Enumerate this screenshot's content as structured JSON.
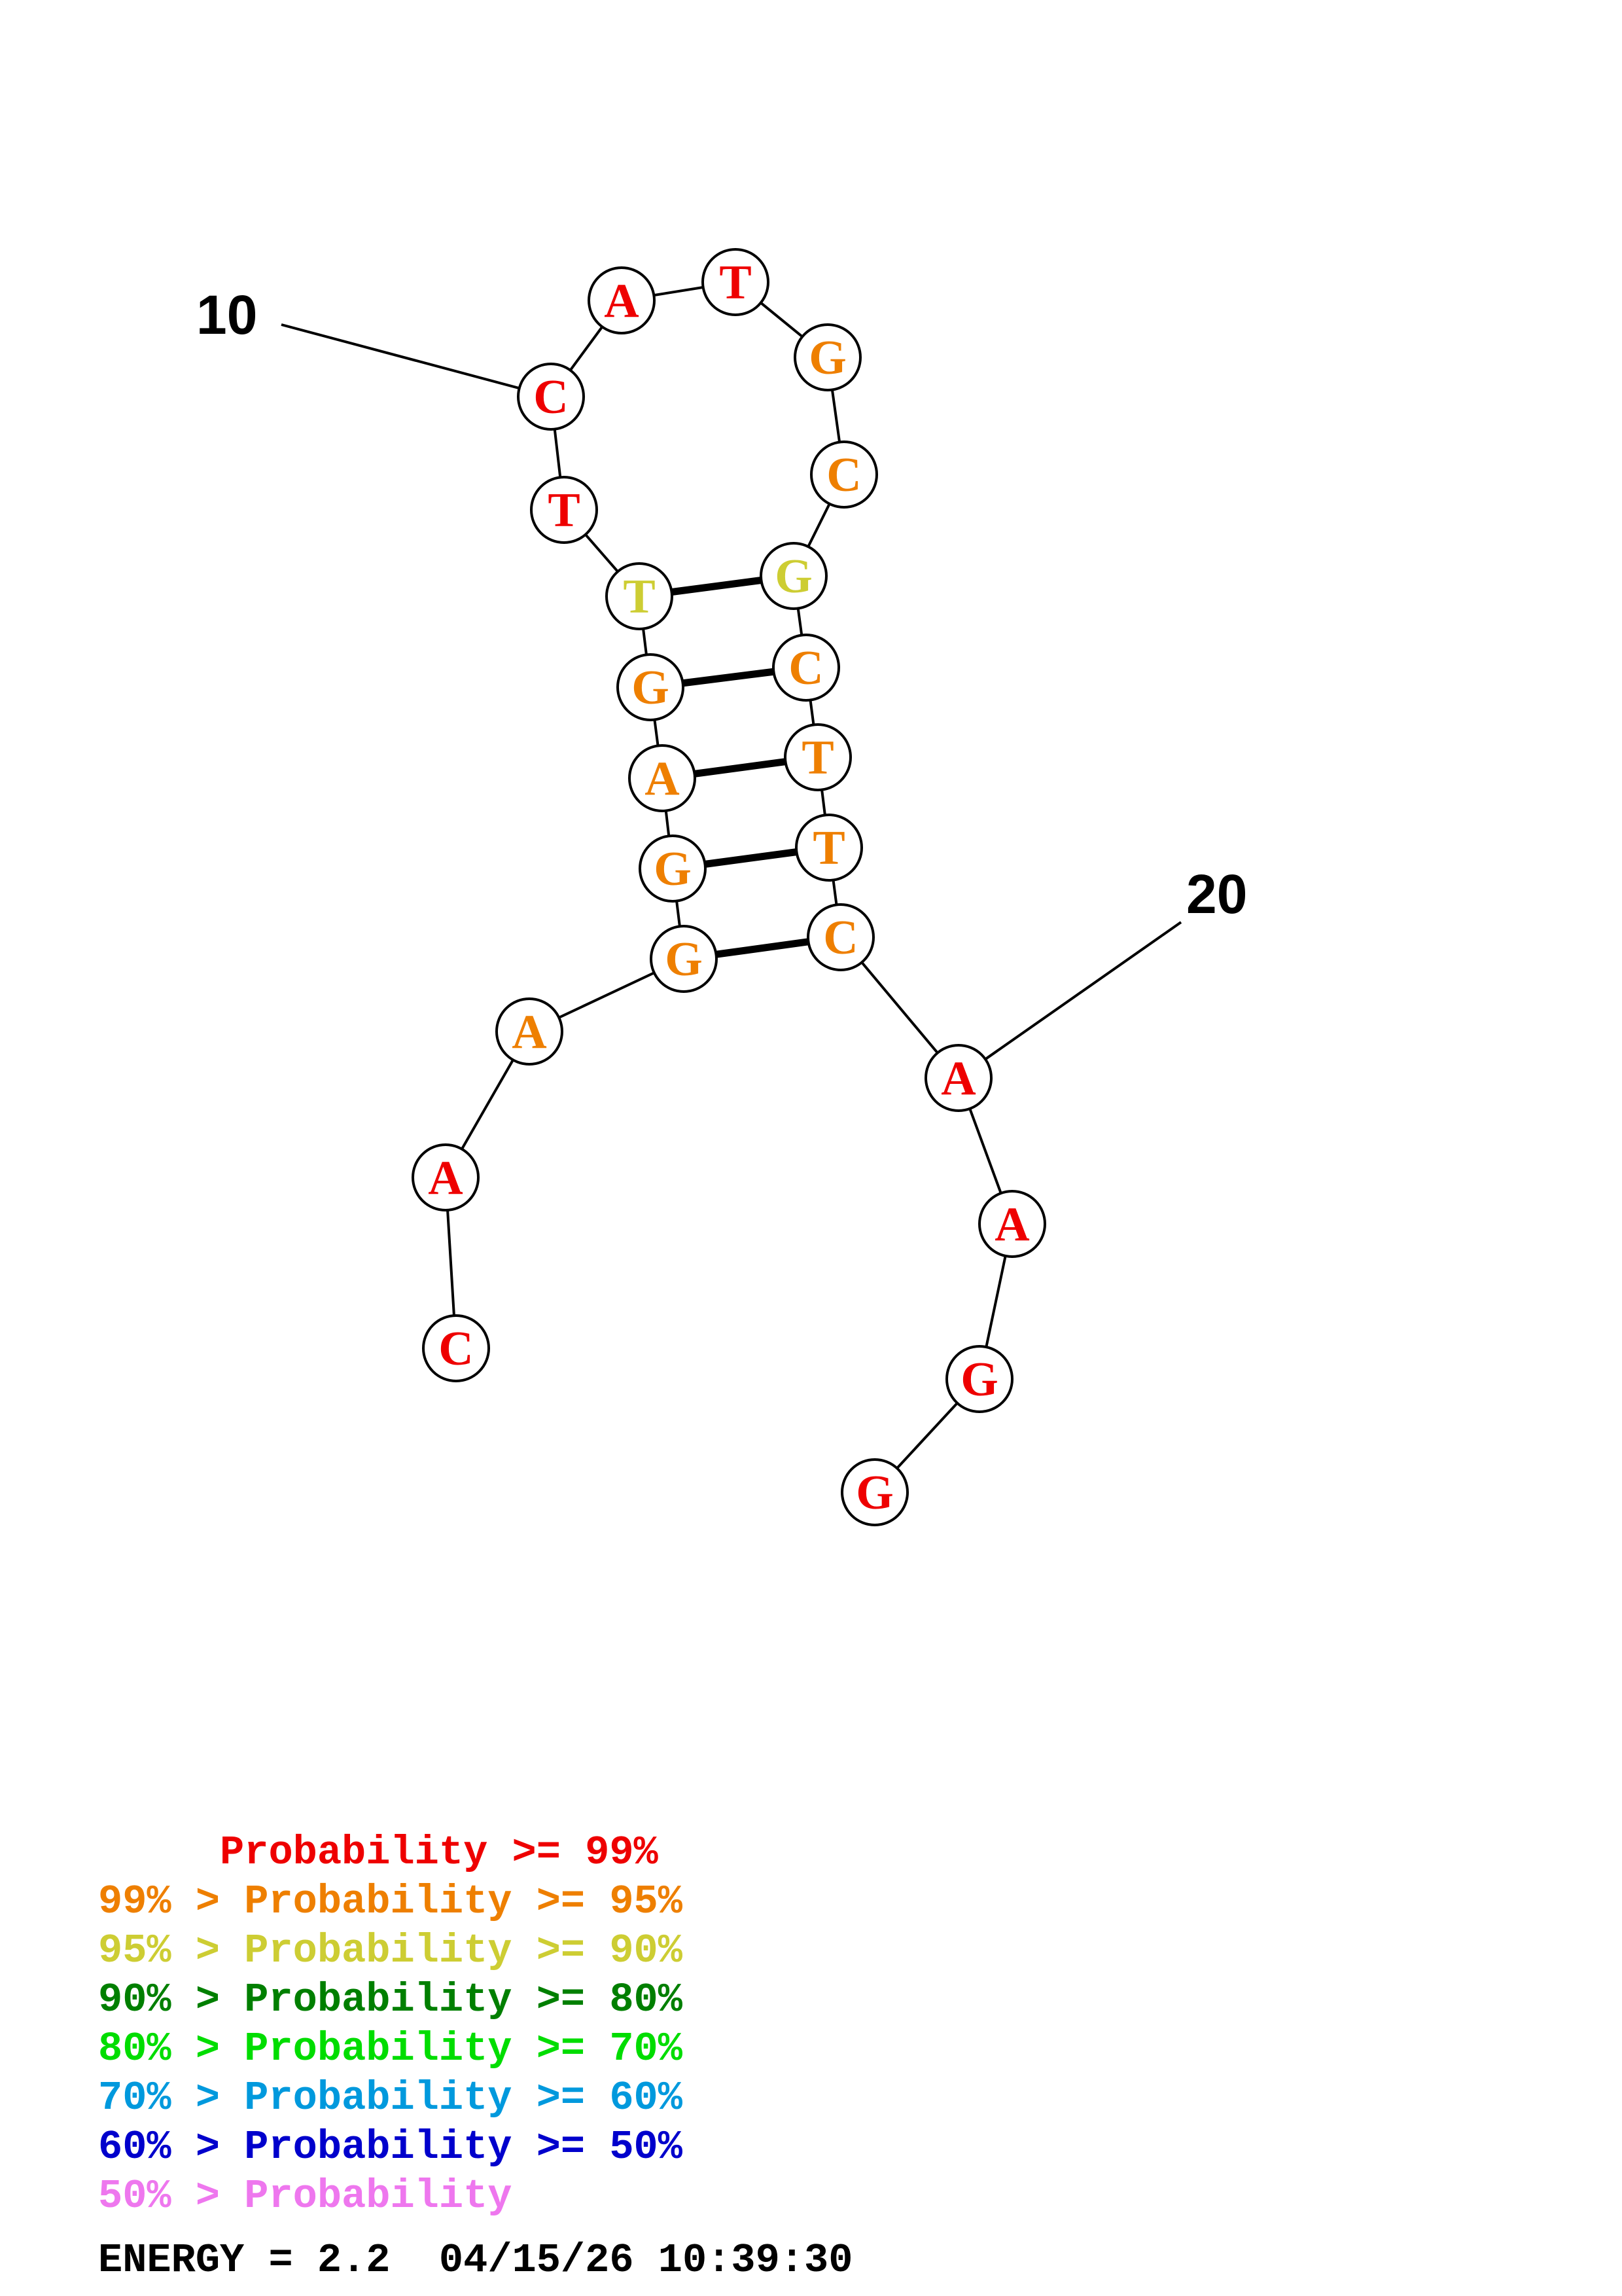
{
  "colors": {
    "p99": "#ee0000",
    "p95": "#ee7f00",
    "p90": "#cdcd33",
    "p80": "#007f00",
    "p70": "#00dd00",
    "p60": "#0099dd",
    "p50": "#0000cc",
    "plow": "#ee77ee"
  },
  "nucleotides": [
    {
      "index": 1,
      "base": "C",
      "prob": "p99"
    },
    {
      "index": 2,
      "base": "A",
      "prob": "p99"
    },
    {
      "index": 3,
      "base": "A",
      "prob": "p95"
    },
    {
      "index": 4,
      "base": "G",
      "prob": "p95"
    },
    {
      "index": 5,
      "base": "G",
      "prob": "p95"
    },
    {
      "index": 6,
      "base": "A",
      "prob": "p95"
    },
    {
      "index": 7,
      "base": "G",
      "prob": "p95"
    },
    {
      "index": 8,
      "base": "T",
      "prob": "p90"
    },
    {
      "index": 9,
      "base": "T",
      "prob": "p99"
    },
    {
      "index": 10,
      "base": "C",
      "prob": "p99"
    },
    {
      "index": 11,
      "base": "A",
      "prob": "p99"
    },
    {
      "index": 12,
      "base": "T",
      "prob": "p99"
    },
    {
      "index": 13,
      "base": "G",
      "prob": "p95"
    },
    {
      "index": 14,
      "base": "C",
      "prob": "p95"
    },
    {
      "index": 15,
      "base": "G",
      "prob": "p90"
    },
    {
      "index": 16,
      "base": "C",
      "prob": "p95"
    },
    {
      "index": 17,
      "base": "T",
      "prob": "p95"
    },
    {
      "index": 18,
      "base": "T",
      "prob": "p95"
    },
    {
      "index": 19,
      "base": "C",
      "prob": "p95"
    },
    {
      "index": 20,
      "base": "A",
      "prob": "p99"
    },
    {
      "index": 21,
      "base": "A",
      "prob": "p99"
    },
    {
      "index": 22,
      "base": "G",
      "prob": "p99"
    },
    {
      "index": 23,
      "base": "G",
      "prob": "p99"
    }
  ],
  "pairs": [
    [
      4,
      19
    ],
    [
      5,
      18
    ],
    [
      6,
      17
    ],
    [
      7,
      16
    ],
    [
      8,
      15
    ]
  ],
  "ticks": [
    {
      "label": "10",
      "index": 10
    },
    {
      "label": "20",
      "index": 20
    }
  ],
  "legend": [
    {
      "text": "     Probability >= 99%",
      "prob": "p99"
    },
    {
      "text": "99% > Probability >= 95%",
      "prob": "p95"
    },
    {
      "text": "95% > Probability >= 90%",
      "prob": "p90"
    },
    {
      "text": "90% > Probability >= 80%",
      "prob": "p80"
    },
    {
      "text": "80% > Probability >= 70%",
      "prob": "p70"
    },
    {
      "text": "70% > Probability >= 60%",
      "prob": "p60"
    },
    {
      "text": "60% > Probability >= 50%",
      "prob": "p50"
    },
    {
      "text": "50% > Probability",
      "prob": "plow"
    }
  ],
  "footer": {
    "energy_label": "ENERGY = 2.2",
    "timestamp": "04/15/26 10:39:30"
  }
}
